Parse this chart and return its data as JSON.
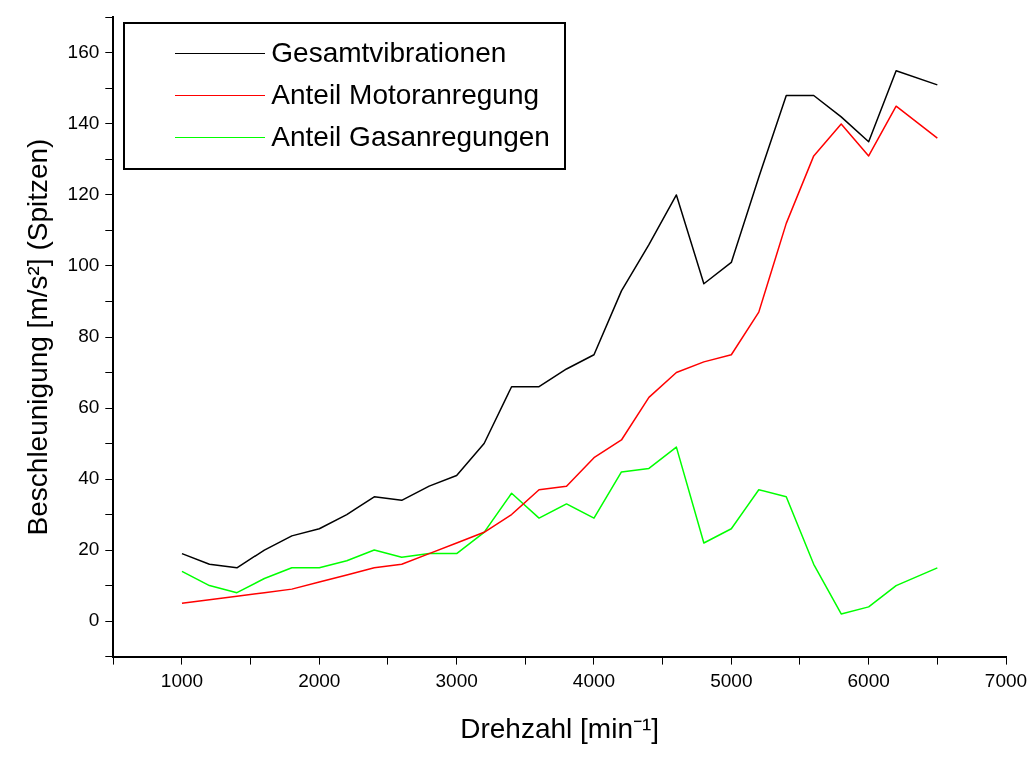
{
  "chart_data": {
    "type": "line",
    "xlabel": "Drehzahl [min⁻¹]",
    "ylabel": "Beschleunigung [m/s²] (Spitzen)",
    "x": [
      1000,
      1200,
      1400,
      1600,
      1800,
      2000,
      2200,
      2400,
      2600,
      2800,
      3000,
      3200,
      3400,
      3600,
      3800,
      4000,
      4200,
      4400,
      4600,
      4800,
      5000,
      5200,
      5400,
      5600,
      5800,
      6000,
      6200,
      6500
    ],
    "series": [
      {
        "name": "Gesamtvibrationen",
        "color": "#000000",
        "values": [
          19,
          16,
          15,
          20,
          24,
          26,
          30,
          35,
          34,
          38,
          41,
          50,
          66,
          66,
          71,
          75,
          93,
          106,
          120,
          95,
          101,
          125,
          148,
          148,
          142,
          135,
          155,
          151
        ]
      },
      {
        "name": "Anteil Motoranregung",
        "color": "#ff0000",
        "values": [
          5,
          6,
          7,
          8,
          9,
          11,
          13,
          15,
          16,
          19,
          22,
          25,
          30,
          37,
          38,
          46,
          51,
          63,
          70,
          73,
          75,
          87,
          112,
          131,
          140,
          131,
          145,
          136
        ]
      },
      {
        "name": "Anteil Gasanregungen",
        "color": "#00ff00",
        "values": [
          14,
          10,
          8,
          12,
          15,
          15,
          17,
          20,
          18,
          19,
          19,
          25,
          36,
          29,
          33,
          29,
          42,
          43,
          49,
          22,
          26,
          37,
          35,
          16,
          2,
          4,
          10,
          15
        ]
      }
    ],
    "xlim": [
      500,
      7000
    ],
    "xticks": [
      {
        "value": 500,
        "label": null
      },
      1000,
      {
        "value": 1500,
        "label": null
      },
      2000,
      {
        "value": 2500,
        "label": null
      },
      3000,
      {
        "value": 3500,
        "label": null
      },
      4000,
      {
        "value": 4500,
        "label": null
      },
      5000,
      {
        "value": 5500,
        "label": null
      },
      6000,
      {
        "value": 6500,
        "label": null
      },
      7000
    ],
    "ylim": [
      -10,
      170
    ],
    "yticks": [
      {
        "value": -10,
        "label": null
      },
      0,
      {
        "value": 10,
        "label": null
      },
      20,
      {
        "value": 30,
        "label": null
      },
      40,
      {
        "value": 50,
        "label": null
      },
      60,
      {
        "value": 70,
        "label": null
      },
      80,
      {
        "value": 90,
        "label": null
      },
      100,
      {
        "value": 110,
        "label": null
      },
      120,
      {
        "value": 130,
        "label": null
      },
      140,
      {
        "value": 150,
        "label": null
      },
      160,
      {
        "value": 170,
        "label": null
      }
    ],
    "grid": false,
    "legend": "top left",
    "marker": "none",
    "line_style": "solid"
  }
}
